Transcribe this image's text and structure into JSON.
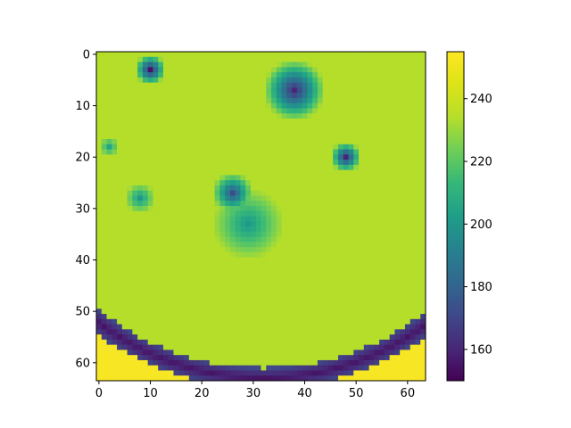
{
  "chart_data": {
    "type": "heatmap",
    "title": "",
    "xlabel": "",
    "ylabel": "",
    "grid": false,
    "rows": 64,
    "cols": 64,
    "colormap": "viridis",
    "value_range": [
      150,
      255
    ],
    "x_ticks": [
      0,
      10,
      20,
      30,
      40,
      50,
      60
    ],
    "y_ticks": [
      0,
      10,
      20,
      30,
      40,
      50,
      60
    ],
    "colorbar_ticks": [
      160,
      180,
      200,
      220,
      240
    ],
    "values_description": "brain MRI-like slice: bright corner region at bottom (~255), dark curved band along bottom arc (~150-165), background ~235, inner blobs ~190-215",
    "features": {
      "background_level": 234,
      "bright_bottom_level": 253,
      "dark_band_level": 155,
      "blob_levels": [
        {
          "row": 3,
          "col": 10,
          "peak": 155,
          "radius": 3
        },
        {
          "row": 7,
          "col": 38,
          "peak": 160,
          "radius": 6
        },
        {
          "row": 20,
          "col": 48,
          "peak": 160,
          "radius": 3
        },
        {
          "row": 27,
          "col": 26,
          "peak": 172,
          "radius": 4
        },
        {
          "row": 33,
          "col": 29,
          "peak": 200,
          "radius": 7
        },
        {
          "row": 28,
          "col": 8,
          "peak": 200,
          "radius": 3
        },
        {
          "row": 18,
          "col": 2,
          "peak": 205,
          "radius": 2
        }
      ]
    }
  }
}
